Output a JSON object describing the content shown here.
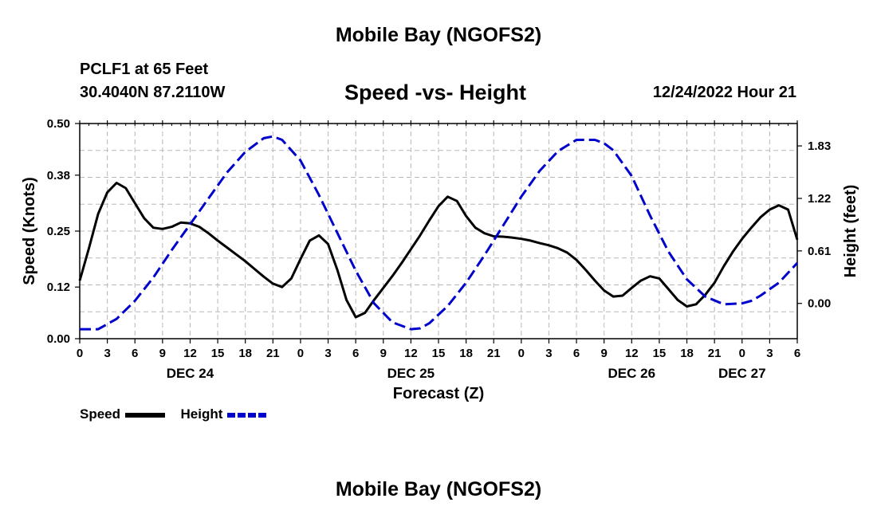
{
  "chart_data": {
    "type": "line",
    "title": "Mobile Bay (NGOFS2)",
    "subtitle": "Speed -vs- Height",
    "station": "PCLF1 at 65 Feet",
    "coords": "30.4040N  87.2110W",
    "timestamp": "12/24/2022 Hour 21",
    "xlabel": "Forecast (Z)",
    "ylabel_left": "Speed (Knots)",
    "ylabel_right": "Height (feet)",
    "xlim": [
      0,
      78
    ],
    "x_ticks": [
      0,
      3,
      6,
      9,
      12,
      15,
      18,
      21,
      24,
      27,
      30,
      33,
      36,
      39,
      42,
      45,
      48,
      51,
      54,
      57,
      60,
      63,
      66,
      69,
      72,
      75,
      78
    ],
    "x_tick_labels": [
      "0",
      "3",
      "6",
      "9",
      "12",
      "15",
      "18",
      "21",
      "0",
      "3",
      "6",
      "9",
      "12",
      "15",
      "18",
      "21",
      "0",
      "3",
      "6",
      "9",
      "12",
      "15",
      "18",
      "21",
      "0",
      "3",
      "6"
    ],
    "day_labels": [
      {
        "label": "DEC 24",
        "x": 12
      },
      {
        "label": "DEC 25",
        "x": 36
      },
      {
        "label": "DEC 26",
        "x": 60
      },
      {
        "label": "DEC 27",
        "x": 72
      }
    ],
    "left_axis": {
      "min": 0,
      "max": 0.5,
      "ticks": [
        0,
        0.12,
        0.25,
        0.38,
        0.5
      ],
      "tick_labels": [
        "0.00",
        "0.12",
        "0.25",
        "0.38",
        "0.50"
      ]
    },
    "right_axis": {
      "min": -0.41,
      "max": 2.09,
      "ticks": [
        0,
        0.61,
        1.22,
        1.83
      ],
      "tick_labels": [
        "0.00",
        "0.61",
        "1.22",
        "1.83"
      ]
    },
    "series": [
      {
        "name": "Speed",
        "axis": "left",
        "color": "#000000",
        "style": "solid",
        "x": [
          0,
          1,
          2,
          3,
          4,
          5,
          6,
          7,
          8,
          9,
          10,
          11,
          12,
          13,
          14,
          15,
          16,
          17,
          18,
          19,
          20,
          21,
          22,
          23,
          24,
          25,
          26,
          27,
          28,
          29,
          30,
          31,
          32,
          33,
          34,
          35,
          36,
          37,
          38,
          39,
          40,
          41,
          42,
          43,
          44,
          45,
          46,
          47,
          48,
          49,
          50,
          51,
          52,
          53,
          54,
          55,
          56,
          57,
          58,
          59,
          60,
          61,
          62,
          63,
          64,
          65,
          66,
          67,
          68,
          69,
          70,
          71,
          72,
          73,
          74,
          75,
          76,
          77,
          78
        ],
        "values": [
          0.135,
          0.21,
          0.29,
          0.34,
          0.362,
          0.35,
          0.315,
          0.28,
          0.258,
          0.255,
          0.26,
          0.27,
          0.268,
          0.26,
          0.245,
          0.228,
          0.212,
          0.196,
          0.18,
          0.162,
          0.144,
          0.128,
          0.12,
          0.14,
          0.185,
          0.228,
          0.24,
          0.22,
          0.16,
          0.09,
          0.05,
          0.06,
          0.09,
          0.118,
          0.146,
          0.176,
          0.208,
          0.24,
          0.275,
          0.308,
          0.33,
          0.32,
          0.285,
          0.258,
          0.245,
          0.238,
          0.237,
          0.235,
          0.232,
          0.228,
          0.222,
          0.217,
          0.21,
          0.2,
          0.183,
          0.16,
          0.135,
          0.112,
          0.098,
          0.1,
          0.118,
          0.135,
          0.145,
          0.14,
          0.115,
          0.09,
          0.075,
          0.08,
          0.102,
          0.13,
          0.168,
          0.202,
          0.232,
          0.258,
          0.282,
          0.3,
          0.31,
          0.3,
          0.23
        ]
      },
      {
        "name": "Height",
        "axis": "right",
        "color": "#0000cc",
        "style": "dashed",
        "x": [
          0,
          2,
          4,
          6,
          8,
          10,
          12,
          14,
          16,
          18,
          20,
          21,
          22,
          24,
          26,
          28,
          30,
          32,
          34,
          36,
          37,
          38,
          40,
          42,
          44,
          46,
          48,
          50,
          52,
          54,
          56,
          57,
          58,
          60,
          62,
          64,
          66,
          68,
          70,
          72,
          73,
          74,
          76,
          78
        ],
        "values": [
          -0.3,
          -0.3,
          -0.18,
          0.03,
          0.3,
          0.62,
          0.92,
          1.22,
          1.52,
          1.76,
          1.92,
          1.94,
          1.9,
          1.66,
          1.26,
          0.82,
          0.38,
          0.0,
          -0.22,
          -0.3,
          -0.29,
          -0.23,
          -0.03,
          0.24,
          0.56,
          0.9,
          1.24,
          1.54,
          1.77,
          1.9,
          1.9,
          1.86,
          1.78,
          1.48,
          1.02,
          0.6,
          0.28,
          0.08,
          -0.01,
          0.0,
          0.03,
          0.09,
          0.24,
          0.47
        ]
      }
    ],
    "footer_title": "Mobile Bay (NGOFS2)"
  }
}
